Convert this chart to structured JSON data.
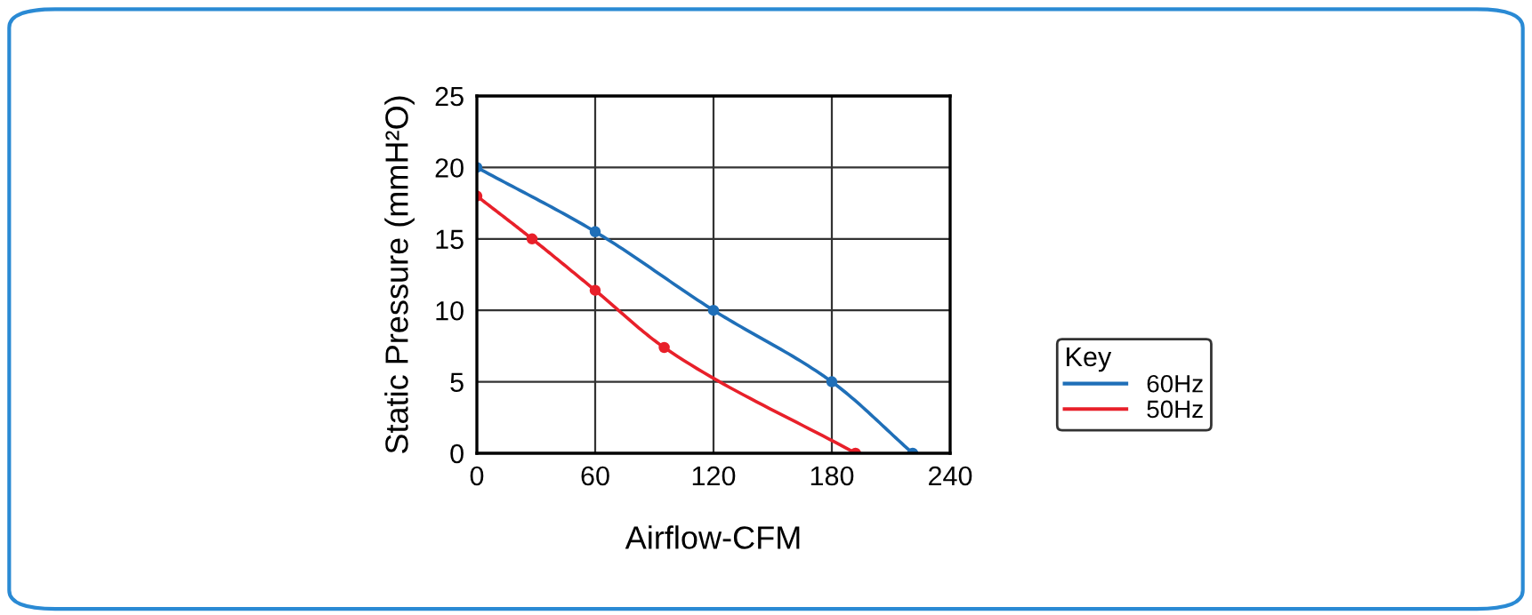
{
  "chart_data": {
    "type": "line",
    "xlabel": "Airflow-CFM",
    "ylabel": "Static Pressure (mmH²O)",
    "series": [
      {
        "name": "60Hz",
        "color": "#1f6fb8",
        "x": [
          0,
          60,
          120,
          180,
          221
        ],
        "values": [
          20,
          15.5,
          10,
          5,
          0
        ]
      },
      {
        "name": "50Hz",
        "color": "#e8202a",
        "x": [
          0,
          28,
          60,
          95,
          192
        ],
        "values": [
          18,
          15,
          11.4,
          7.4,
          0
        ]
      }
    ],
    "xlim": [
      0,
      240
    ],
    "xticks": [
      0,
      60,
      120,
      180,
      240
    ],
    "ylim": [
      0,
      25
    ],
    "yticks": [
      0,
      5,
      10,
      15,
      20,
      25
    ],
    "grid": true,
    "legend": "right",
    "legend_title": "Key",
    "marker": "circle",
    "line_style": "solid"
  }
}
